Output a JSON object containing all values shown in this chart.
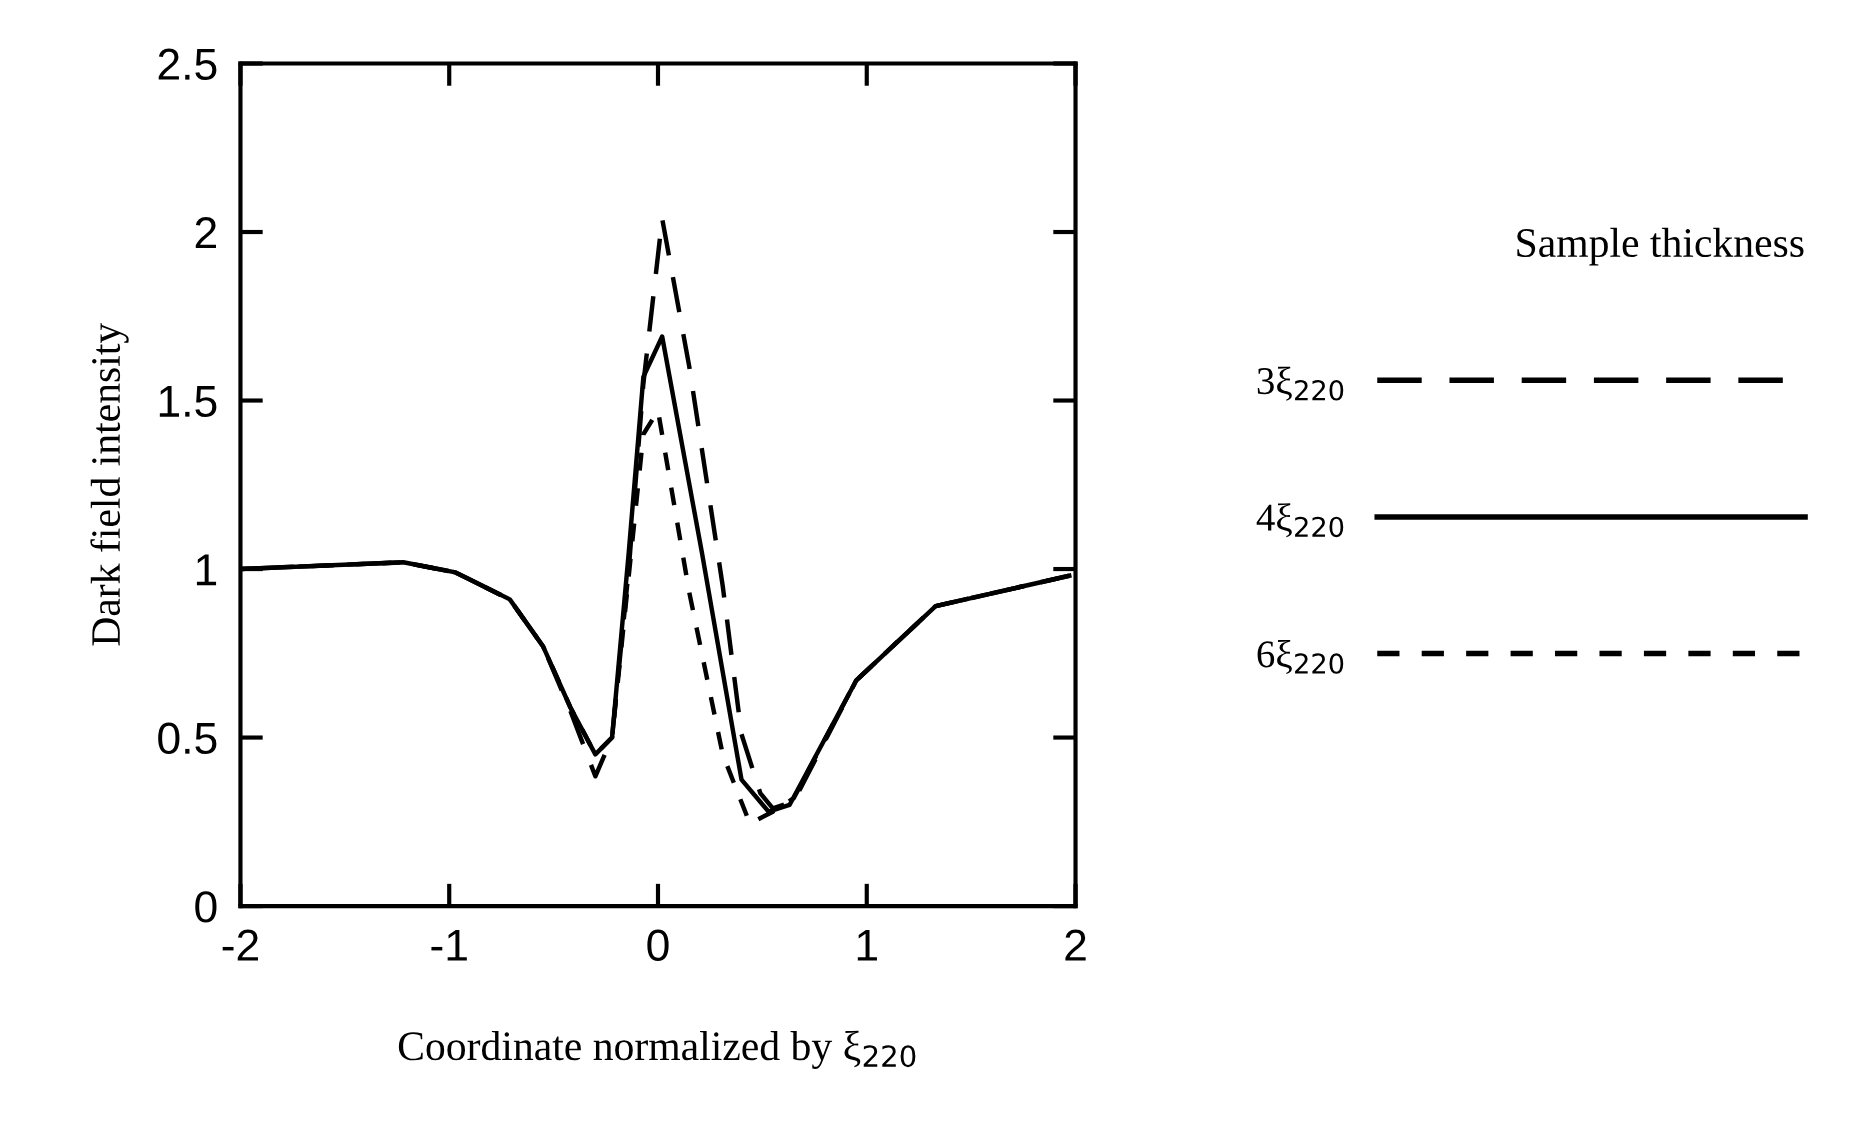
{
  "chart_data": {
    "type": "line",
    "xlabel": "Coordinate normalized by ξ$_{220}$",
    "ylabel": "Dark field intensity",
    "legend_title": "Sample thickness",
    "legend": "right",
    "grid": false,
    "xlim": [
      -2,
      2
    ],
    "xticks": [
      -2,
      -1,
      0,
      1,
      2
    ],
    "ylim": [
      0,
      2.5
    ],
    "yticks": [
      0,
      0.5,
      1,
      1.5,
      2,
      2.5
    ],
    "series": [
      {
        "name": "3ξ$_{220}$",
        "color": "#000000",
        "line_style": "dashed",
        "x": [
          -2,
          -1.22,
          -0.97,
          -0.71,
          -0.55,
          -0.42,
          -0.3,
          -0.22,
          -0.14,
          -0.07,
          0.02,
          0.15,
          0.31,
          0.4,
          0.49,
          0.55,
          0.65,
          0.95,
          1.33,
          1.97
        ],
        "values": [
          1.0,
          1.02,
          0.99,
          0.91,
          0.77,
          0.58,
          0.385,
          0.5,
          1.0,
          1.55,
          2.04,
          1.6,
          0.95,
          0.51,
          0.335,
          0.29,
          0.31,
          0.67,
          0.89,
          0.98
        ]
      },
      {
        "name": "4ξ$_{220}$",
        "color": "#000000",
        "line_style": "solid",
        "x": [
          -2,
          -1.22,
          -0.97,
          -0.71,
          -0.55,
          -0.42,
          -0.3,
          -0.22,
          -0.14,
          -0.07,
          0.02,
          0.21,
          0.4,
          0.53,
          0.63,
          0.95,
          1.33,
          1.97
        ],
        "values": [
          1.0,
          1.02,
          0.99,
          0.91,
          0.77,
          0.59,
          0.45,
          0.5,
          1.05,
          1.57,
          1.69,
          1.05,
          0.375,
          0.28,
          0.3,
          0.67,
          0.89,
          0.98
        ]
      },
      {
        "name": "6ξ$_{220}$",
        "color": "#000000",
        "line_style": "dotted",
        "x": [
          -2,
          -1.22,
          -0.97,
          -0.71,
          -0.55,
          -0.42,
          -0.3,
          -0.22,
          -0.14,
          -0.07,
          0.0,
          0.15,
          0.31,
          0.44,
          0.55,
          0.65,
          0.95,
          1.33,
          1.97
        ],
        "values": [
          1.0,
          1.02,
          0.99,
          0.91,
          0.77,
          0.59,
          0.45,
          0.5,
          0.98,
          1.4,
          1.47,
          0.93,
          0.45,
          0.245,
          0.28,
          0.32,
          0.67,
          0.89,
          0.98
        ]
      }
    ]
  }
}
